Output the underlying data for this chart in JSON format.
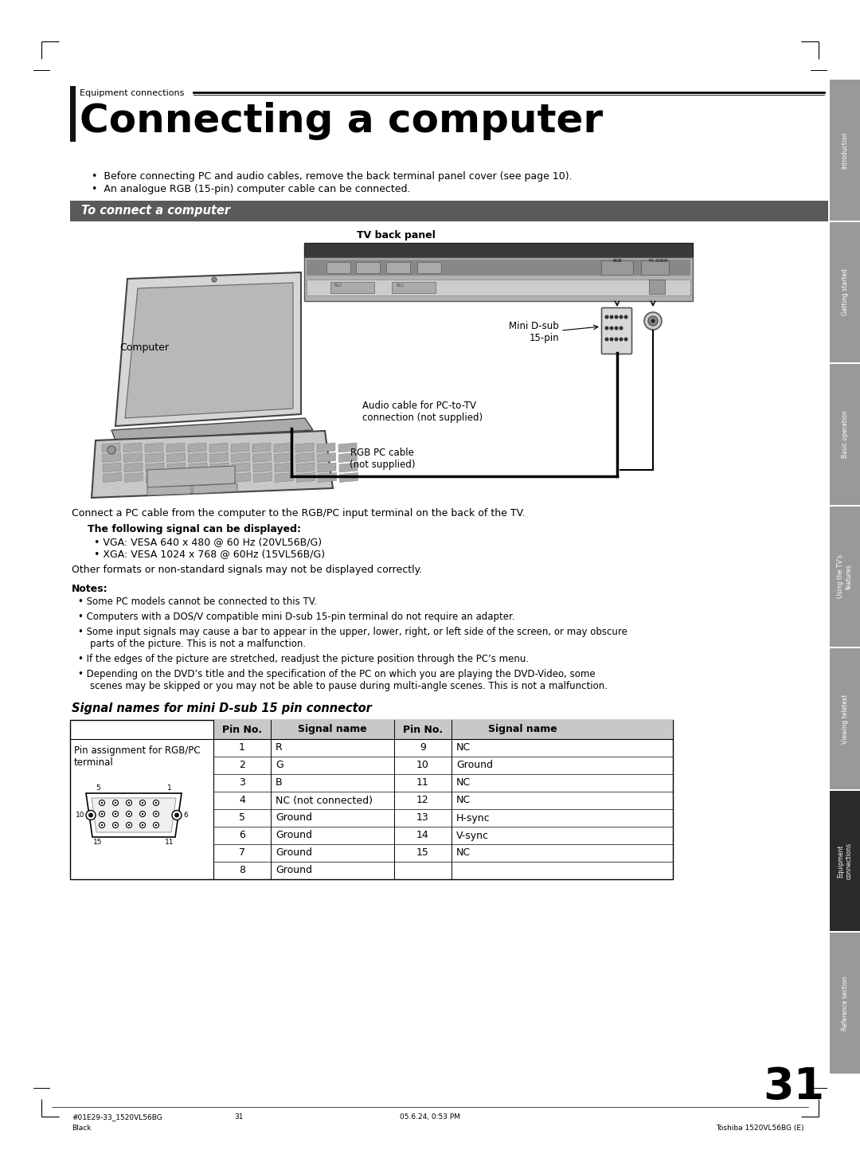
{
  "page_bg": "#ffffff",
  "title_section": "Equipment connections",
  "title_main": "Connecting a computer",
  "sidebar_sections": [
    {
      "label": "Introduction",
      "active": false
    },
    {
      "label": "Getting started",
      "active": false
    },
    {
      "label": "Basic operation",
      "active": false
    },
    {
      "label": "Using the TV's\nfeatures",
      "active": false
    },
    {
      "label": "Viewing teletext",
      "active": false
    },
    {
      "label": "Equipment\nconnections",
      "active": true
    },
    {
      "label": "Reference section",
      "active": false
    }
  ],
  "bullet_intro": [
    "Before connecting PC and audio cables, remove the back terminal panel cover (see page 10).",
    "An analogue RGB (15-pin) computer cable can be connected."
  ],
  "section_header": "To connect a computer",
  "section_header_bg": "#5a5a5a",
  "diagram_label_tv": "TV back panel",
  "diagram_label_computer": "Computer",
  "diagram_label_minidsub": "Mini D-sub\n15-pin",
  "diagram_label_audio": "Audio cable for PC-to-TV\nconnection (not supplied)",
  "diagram_label_rgb": "RGB PC cable\n(not supplied)",
  "body_text1": "Connect a PC cable from the computer to the RGB/PC input terminal on the back of the TV.",
  "body_bold": "The following signal can be displayed:",
  "body_bullets": [
    "VGA: VESA 640 x 480 @ 60 Hz (20VL56B/G)",
    "XGA: VESA 1024 x 768 @ 60Hz (15VL56B/G)"
  ],
  "body_text2": "Other formats or non-standard signals may not be displayed correctly.",
  "notes_header": "Notes:",
  "notes": [
    "Some PC models cannot be connected to this TV.",
    "Computers with a DOS/V compatible mini D-sub 15-pin terminal do not require an adapter.",
    "Some input signals may cause a bar to appear in the upper, lower, right, or left side of the screen, or may obscure\n    parts of the picture. This is not a malfunction.",
    "If the edges of the picture are stretched, readjust the picture position through the PC’s menu.",
    "Depending on the DVD’s title and the specification of the PC on which you are playing the DVD-Video, some\n    scenes may be skipped or you may not be able to pause during multi-angle scenes. This is not a malfunction."
  ],
  "table_title": "Signal names for mini D-sub 15 pin connector",
  "table_left_label": "Pin assignment for RGB/PC\nterminal",
  "table_headers": [
    "Pin No.",
    "Signal name",
    "Pin No.",
    "Signal name"
  ],
  "table_rows": [
    [
      "1",
      "R",
      "9",
      "NC"
    ],
    [
      "2",
      "G",
      "10",
      "Ground"
    ],
    [
      "3",
      "B",
      "11",
      "NC"
    ],
    [
      "4",
      "NC (not connected)",
      "12",
      "NC"
    ],
    [
      "5",
      "Ground",
      "13",
      "H-sync"
    ],
    [
      "6",
      "Ground",
      "14",
      "V-sync"
    ],
    [
      "7",
      "Ground",
      "15",
      "NC"
    ],
    [
      "8",
      "Ground",
      "",
      ""
    ]
  ],
  "table_header_bg": "#c8c8c8",
  "page_number": "31",
  "footer_left1": "#01E29-33_1520VL56BG",
  "footer_left2": "31",
  "footer_left3": "Black",
  "footer_center": "05.6.24, 0:53 PM",
  "footer_right": "Toshiba 1520VL56BG (E)"
}
